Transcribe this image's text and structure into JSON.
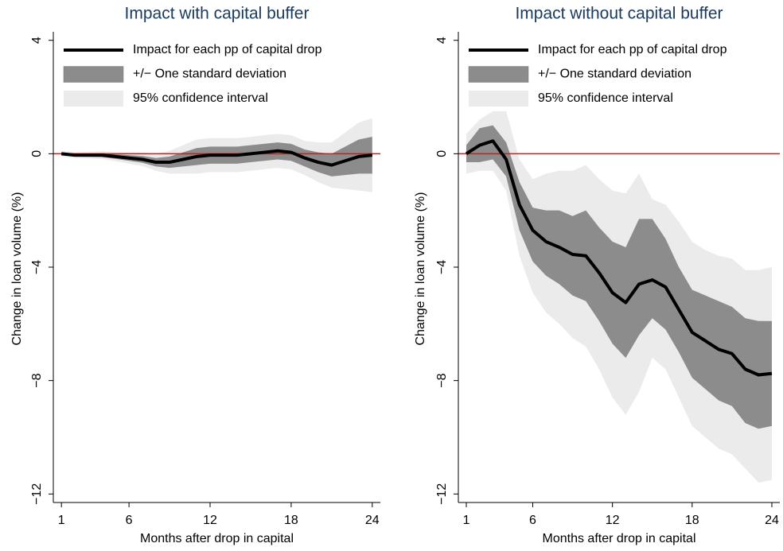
{
  "chart_data": [
    {
      "type": "line",
      "title": "Impact with capital buffer",
      "y_label": "Change in loan volume (%)",
      "x_label": "Months after drop in capital",
      "x": [
        1,
        2,
        3,
        4,
        5,
        6,
        7,
        8,
        9,
        10,
        11,
        12,
        13,
        14,
        15,
        16,
        17,
        18,
        19,
        20,
        21,
        22,
        23,
        24
      ],
      "xlim": [
        0.4,
        24.6
      ],
      "xticks": [
        1,
        6,
        12,
        18,
        24
      ],
      "ylim": [
        -12.3,
        4.3
      ],
      "yticks": [
        4,
        0,
        {
          "value": -4,
          "label": "−4"
        },
        {
          "value": -8,
          "label": "−8"
        },
        {
          "value": -12,
          "label": "−12"
        }
      ],
      "reference_line": 0,
      "reference_color": "#e3120b",
      "series": [
        {
          "name": "Impact for each pp of capital drop",
          "color": "#000000",
          "values": [
            0,
            -0.05,
            -0.05,
            -0.05,
            -0.1,
            -0.15,
            -0.2,
            -0.3,
            -0.3,
            -0.2,
            -0.1,
            -0.05,
            -0.05,
            -0.05,
            0,
            0.05,
            0.1,
            0.05,
            -0.15,
            -0.3,
            -0.4,
            -0.25,
            -0.1,
            -0.05
          ]
        },
        {
          "name": "+/− One standard deviation",
          "color": "#8c8c8c",
          "upper": [
            0.05,
            0,
            0.01,
            0.02,
            -0.02,
            -0.05,
            -0.08,
            -0.15,
            -0.1,
            0.05,
            0.2,
            0.25,
            0.25,
            0.25,
            0.3,
            0.35,
            0.4,
            0.35,
            0.15,
            0.05,
            0,
            0.25,
            0.5,
            0.6
          ],
          "lower": [
            -0.05,
            -0.1,
            -0.11,
            -0.12,
            -0.18,
            -0.25,
            -0.32,
            -0.45,
            -0.5,
            -0.45,
            -0.4,
            -0.35,
            -0.35,
            -0.35,
            -0.3,
            -0.25,
            -0.2,
            -0.25,
            -0.45,
            -0.65,
            -0.8,
            -0.75,
            -0.7,
            -0.7
          ]
        },
        {
          "name": "95% confidence interval",
          "color": "#ebebeb",
          "upper": [
            0.1,
            0.05,
            0.07,
            0.09,
            0.06,
            0.05,
            0.04,
            0,
            0.1,
            0.3,
            0.5,
            0.55,
            0.55,
            0.55,
            0.6,
            0.65,
            0.7,
            0.65,
            0.45,
            0.4,
            0.4,
            0.75,
            1.1,
            1.25
          ],
          "lower": [
            -0.1,
            -0.15,
            -0.17,
            -0.19,
            -0.26,
            -0.35,
            -0.44,
            -0.6,
            -0.7,
            -0.7,
            -0.7,
            -0.65,
            -0.65,
            -0.65,
            -0.6,
            -0.55,
            -0.5,
            -0.55,
            -0.75,
            -1.0,
            -1.2,
            -1.25,
            -1.3,
            -1.35
          ]
        }
      ]
    },
    {
      "type": "line",
      "title": "Impact without capital buffer",
      "y_label": "Change in loan volume (%)",
      "x_label": "Months after drop in capital",
      "x": [
        1,
        2,
        3,
        4,
        5,
        6,
        7,
        8,
        9,
        10,
        11,
        12,
        13,
        14,
        15,
        16,
        17,
        18,
        19,
        20,
        21,
        22,
        23,
        24
      ],
      "xlim": [
        0.4,
        24.6
      ],
      "xticks": [
        1,
        6,
        12,
        18,
        24
      ],
      "ylim": [
        -12.3,
        4.3
      ],
      "yticks": [
        4,
        0,
        {
          "value": -4,
          "label": "−4"
        },
        {
          "value": -8,
          "label": "−8"
        },
        {
          "value": -12,
          "label": "−12"
        }
      ],
      "reference_line": 0,
      "reference_color": "#e3120b",
      "series": [
        {
          "name": "Impact for each pp of capital drop",
          "color": "#000000",
          "values": [
            0,
            0.3,
            0.45,
            -0.2,
            -1.8,
            -2.7,
            -3.1,
            -3.3,
            -3.55,
            -3.6,
            -4.2,
            -4.9,
            -5.25,
            -4.6,
            -4.45,
            -4.7,
            -5.5,
            -6.3,
            -6.6,
            -6.9,
            -7.05,
            -7.6,
            -7.8,
            -7.75
          ]
        },
        {
          "name": "+/− One standard deviation",
          "color": "#8c8c8c",
          "upper": [
            0.3,
            0.9,
            1.0,
            0.4,
            -1.0,
            -1.9,
            -2.0,
            -2.0,
            -2.2,
            -2.0,
            -2.6,
            -3.1,
            -3.3,
            -2.3,
            -2.3,
            -3.0,
            -4.0,
            -4.8,
            -5.0,
            -5.2,
            -5.4,
            -5.8,
            -5.9,
            -5.9
          ],
          "lower": [
            -0.3,
            -0.3,
            -0.2,
            -0.8,
            -2.7,
            -3.8,
            -4.3,
            -4.6,
            -5.0,
            -5.2,
            -5.9,
            -6.7,
            -7.2,
            -6.4,
            -5.8,
            -6.2,
            -7.0,
            -7.9,
            -8.3,
            -8.7,
            -8.9,
            -9.5,
            -9.7,
            -9.6
          ]
        },
        {
          "name": "95% confidence interval",
          "color": "#ebebeb",
          "upper": [
            0.7,
            1.2,
            1.5,
            1.5,
            -0.2,
            -0.9,
            -0.7,
            -0.6,
            -0.6,
            -0.4,
            -0.9,
            -1.3,
            -1.4,
            -0.7,
            -1.6,
            -1.8,
            -2.4,
            -3.1,
            -3.4,
            -3.6,
            -3.7,
            -4.1,
            -4.1,
            -4.0
          ],
          "lower": [
            -0.7,
            -0.6,
            -0.6,
            -1.3,
            -3.6,
            -4.9,
            -5.6,
            -6.0,
            -6.5,
            -6.8,
            -7.6,
            -8.6,
            -9.2,
            -8.4,
            -7.2,
            -7.6,
            -8.6,
            -9.6,
            -10.0,
            -10.4,
            -10.6,
            -11.1,
            -11.6,
            -11.5
          ]
        }
      ]
    }
  ]
}
